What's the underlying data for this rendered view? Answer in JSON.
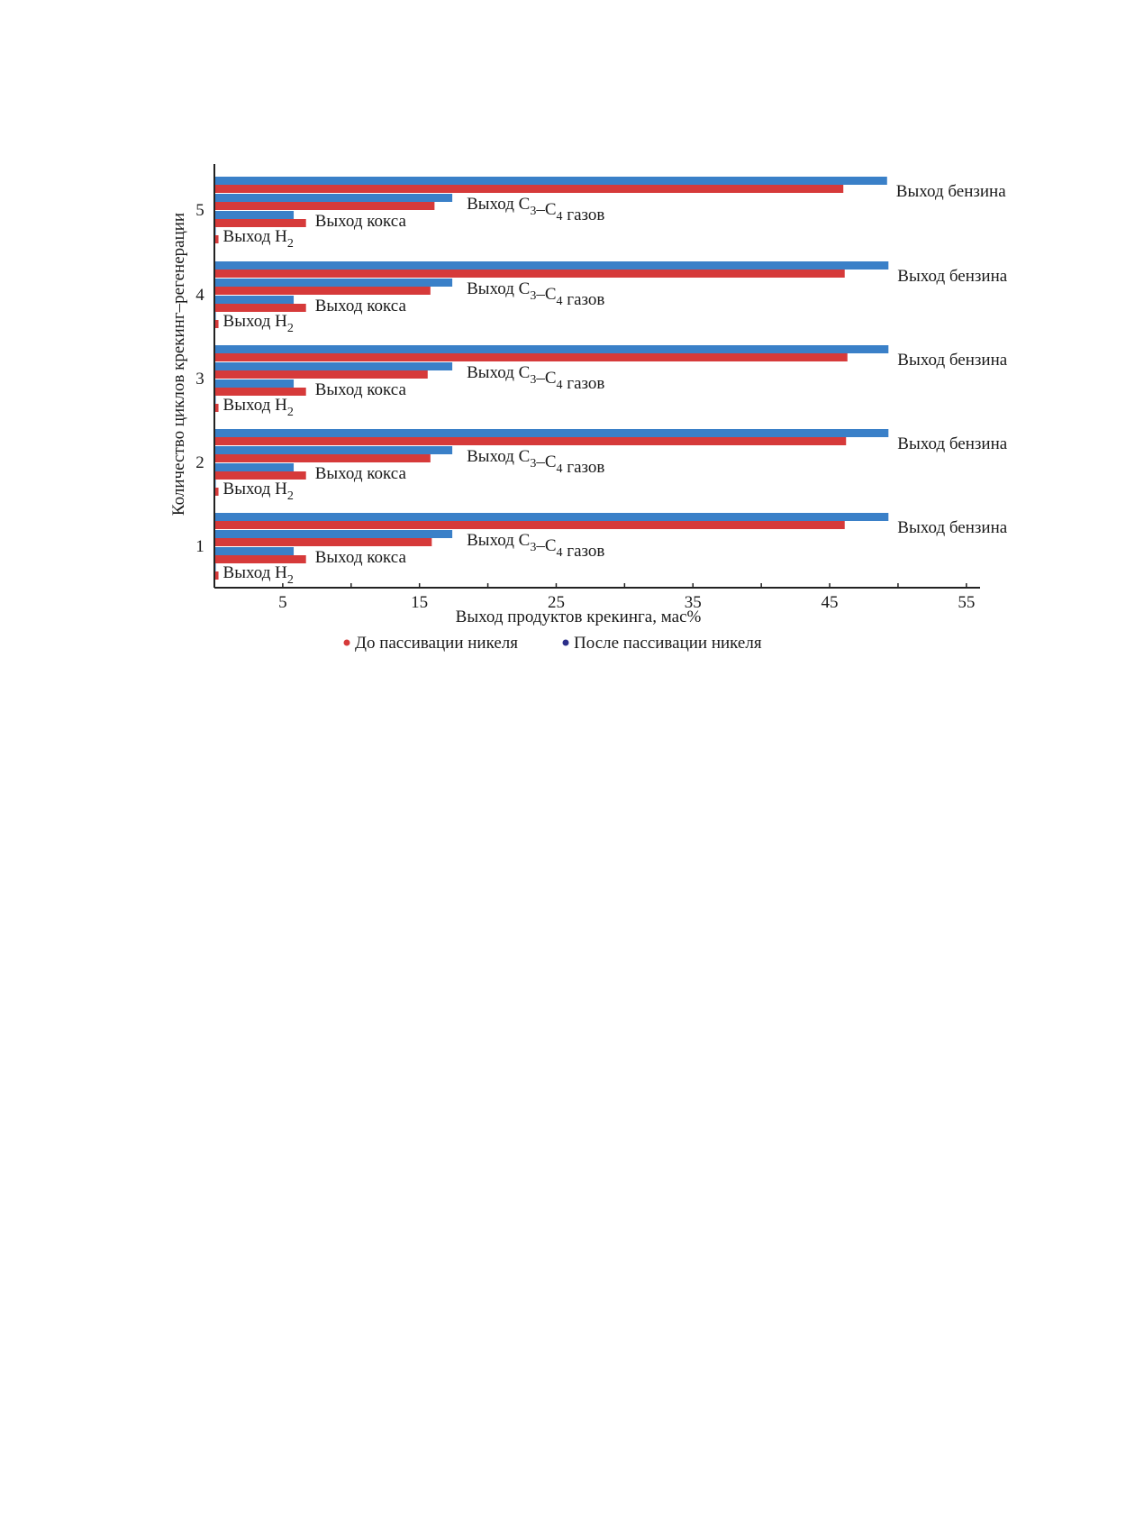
{
  "chart_data": {
    "type": "bar",
    "orientation": "horizontal",
    "title": "",
    "xlabel": "Выход продуктов крекинга, мас%",
    "ylabel": "Количество циклов крекинг–регенерации",
    "xlim": [
      0,
      56
    ],
    "xticks": [
      5,
      15,
      25,
      35,
      45,
      55
    ],
    "grid": false,
    "categories": [
      "1",
      "2",
      "3",
      "4",
      "5"
    ],
    "products": [
      {
        "key": "benzin",
        "label": "Выход бензина"
      },
      {
        "key": "gas",
        "label": "Выход C3–C4 газов"
      },
      {
        "key": "coke",
        "label": "Выход кокса"
      },
      {
        "key": "h2",
        "label": "Выход H2"
      }
    ],
    "series": [
      {
        "name": "До пассивации никеля",
        "color": "#d63a3a",
        "values": {
          "benzin": [
            46.1,
            46.2,
            46.3,
            46.1,
            46.0
          ],
          "gas": [
            15.9,
            15.8,
            15.6,
            15.8,
            16.1
          ],
          "coke": [
            6.7,
            6.7,
            6.7,
            6.7,
            6.7
          ],
          "h2": [
            0.3,
            0.3,
            0.3,
            0.3,
            0.3
          ]
        }
      },
      {
        "name": "После пассивации никеля",
        "color": "#3a80c8",
        "values": {
          "benzin": [
            49.3,
            49.3,
            49.3,
            49.3,
            49.2
          ],
          "gas": [
            17.4,
            17.4,
            17.4,
            17.4,
            17.4
          ],
          "coke": [
            5.8,
            5.8,
            5.8,
            5.8,
            5.8
          ],
          "h2": [
            0.1,
            0.1,
            0.1,
            0.1,
            0.1
          ]
        }
      }
    ],
    "legend": {
      "position": "bottom",
      "entries": [
        {
          "label": "До пассивации никеля",
          "marker_color": "#d63a3a"
        },
        {
          "label": "После пассивации никеля",
          "marker_color": "#2c2f8a"
        }
      ]
    }
  }
}
